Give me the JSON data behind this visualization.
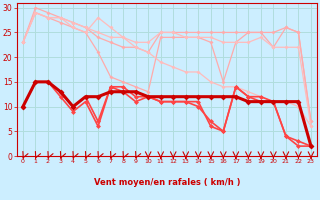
{
  "background_color": "#cceeff",
  "grid_color": "#b0dddd",
  "xlabel": "Vent moyen/en rafales ( km/h )",
  "xlim": [
    -0.5,
    23.5
  ],
  "ylim": [
    0,
    31
  ],
  "yticks": [
    0,
    5,
    10,
    15,
    20,
    25,
    30
  ],
  "xticks": [
    0,
    1,
    2,
    3,
    4,
    5,
    6,
    7,
    8,
    9,
    10,
    11,
    12,
    13,
    14,
    15,
    16,
    17,
    18,
    19,
    20,
    21,
    22,
    23
  ],
  "lines": [
    {
      "x": [
        0,
        1,
        2,
        3,
        4,
        5,
        6,
        7,
        8,
        9,
        10,
        11,
        12,
        13,
        14,
        15,
        16,
        17,
        18,
        19,
        20,
        21,
        22,
        23
      ],
      "y": [
        23,
        29,
        28,
        27,
        26,
        25,
        21,
        16,
        15,
        14,
        13,
        24,
        24,
        24,
        24,
        23,
        15,
        23,
        25,
        25,
        22,
        26,
        25,
        7
      ],
      "color": "#ffaaaa",
      "lw": 0.9,
      "ms": 2.0
    },
    {
      "x": [
        0,
        1,
        2,
        3,
        4,
        5,
        6,
        7,
        8,
        9,
        10,
        11,
        12,
        13,
        14,
        15,
        16,
        17,
        18,
        19,
        20,
        21,
        22,
        23
      ],
      "y": [
        23,
        30,
        29,
        28,
        27,
        26,
        24,
        23,
        22,
        22,
        21,
        25,
        25,
        25,
        25,
        25,
        25,
        25,
        25,
        25,
        25,
        26,
        25,
        7
      ],
      "color": "#ffaaaa",
      "lw": 0.9,
      "ms": 2.0
    },
    {
      "x": [
        0,
        1,
        2,
        3,
        4,
        5,
        6,
        7,
        8,
        9,
        10,
        11,
        12,
        13,
        14,
        15,
        16,
        17,
        18,
        19,
        20,
        21,
        22,
        23
      ],
      "y": [
        23,
        29,
        28,
        28,
        27,
        26,
        25,
        24,
        24,
        23,
        23,
        25,
        25,
        24,
        24,
        24,
        23,
        23,
        23,
        24,
        22,
        22,
        22,
        6
      ],
      "color": "#ffbbbb",
      "lw": 0.9,
      "ms": 2.0
    },
    {
      "x": [
        0,
        1,
        2,
        3,
        4,
        5,
        6,
        7,
        8,
        9,
        10,
        11,
        12,
        13,
        14,
        15,
        16,
        17,
        18,
        19,
        20,
        21,
        22,
        23
      ],
      "y": [
        23,
        29,
        28,
        28,
        26,
        25,
        28,
        26,
        24,
        22,
        21,
        19,
        18,
        17,
        17,
        15,
        14,
        14,
        13,
        12,
        11,
        11,
        10,
        6
      ],
      "color": "#ffbbbb",
      "lw": 0.9,
      "ms": 2.0
    },
    {
      "x": [
        0,
        1,
        2,
        3,
        4,
        5,
        6,
        7,
        8,
        9,
        10,
        11,
        12,
        13,
        14,
        15,
        16,
        17,
        18,
        19,
        20,
        21,
        22,
        23
      ],
      "y": [
        10,
        15,
        15,
        12,
        9,
        11,
        6,
        14,
        13,
        11,
        12,
        11,
        11,
        11,
        10,
        7,
        5,
        14,
        12,
        12,
        11,
        4,
        3,
        2
      ],
      "color": "#ff4444",
      "lw": 1.2,
      "ms": 2.5
    },
    {
      "x": [
        0,
        1,
        2,
        3,
        4,
        5,
        6,
        7,
        8,
        9,
        10,
        11,
        12,
        13,
        14,
        15,
        16,
        17,
        18,
        19,
        20,
        21,
        22,
        23
      ],
      "y": [
        10,
        15,
        15,
        13,
        10,
        12,
        7,
        14,
        14,
        12,
        12,
        11,
        11,
        11,
        11,
        6,
        5,
        14,
        12,
        11,
        11,
        4,
        2,
        2
      ],
      "color": "#ff4444",
      "lw": 1.2,
      "ms": 2.5
    },
    {
      "x": [
        0,
        1,
        2,
        3,
        4,
        5,
        6,
        7,
        8,
        9,
        10,
        11,
        12,
        13,
        14,
        15,
        16,
        17,
        18,
        19,
        20,
        21,
        22,
        23
      ],
      "y": [
        10,
        15,
        15,
        13,
        10,
        12,
        12,
        13,
        13,
        13,
        12,
        12,
        12,
        12,
        12,
        12,
        12,
        12,
        11,
        11,
        11,
        11,
        11,
        2
      ],
      "color": "#cc0000",
      "lw": 2.2,
      "ms": 3.0
    }
  ],
  "arrow_angles_deg": [
    225,
    225,
    225,
    225,
    225,
    225,
    225,
    225,
    225,
    225,
    270,
    270,
    270,
    270,
    270,
    270,
    270,
    270,
    270,
    270,
    270,
    270,
    270,
    270
  ],
  "arrow_color": "#cc0000"
}
